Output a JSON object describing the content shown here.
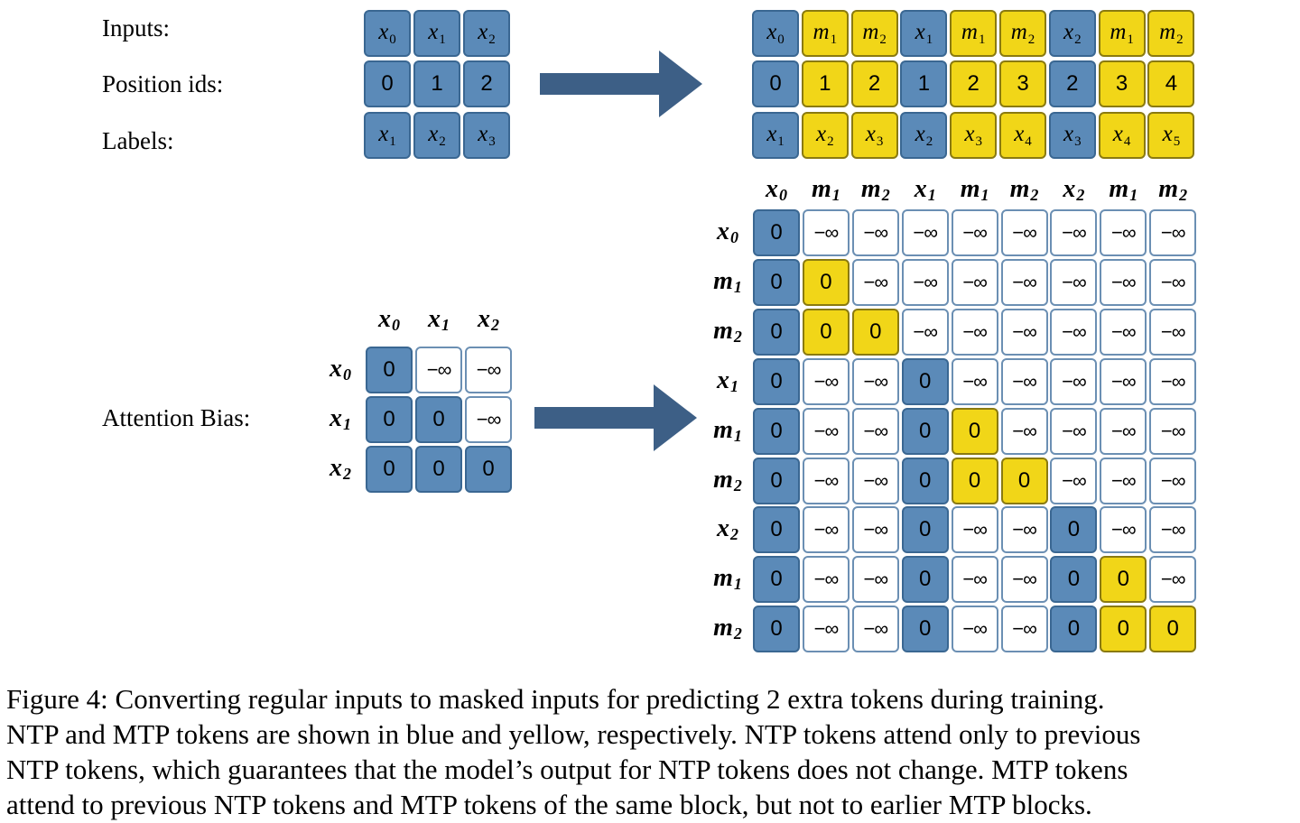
{
  "row_labels": {
    "inputs": "Inputs:",
    "position_ids": "Position ids:",
    "labels": "Labels:",
    "attention_bias": "Attention Bias:"
  },
  "regular": {
    "inputs": [
      {
        "t": "x",
        "s": "0"
      },
      {
        "t": "x",
        "s": "1"
      },
      {
        "t": "x",
        "s": "2"
      }
    ],
    "position_ids": [
      "0",
      "1",
      "2"
    ],
    "labels": [
      {
        "t": "x",
        "s": "1"
      },
      {
        "t": "x",
        "s": "2"
      },
      {
        "t": "x",
        "s": "3"
      }
    ],
    "bias_headers": [
      {
        "t": "x",
        "s": "0"
      },
      {
        "t": "x",
        "s": "1"
      },
      {
        "t": "x",
        "s": "2"
      }
    ],
    "bias": [
      [
        "0",
        "−∞",
        "−∞"
      ],
      [
        "0",
        "0",
        "−∞"
      ],
      [
        "0",
        "0",
        "0"
      ]
    ]
  },
  "masked": {
    "kinds": [
      "ntp",
      "mtp",
      "mtp",
      "ntp",
      "mtp",
      "mtp",
      "ntp",
      "mtp",
      "mtp"
    ],
    "inputs": [
      {
        "t": "x",
        "s": "0"
      },
      {
        "t": "m",
        "s": "1"
      },
      {
        "t": "m",
        "s": "2"
      },
      {
        "t": "x",
        "s": "1"
      },
      {
        "t": "m",
        "s": "1"
      },
      {
        "t": "m",
        "s": "2"
      },
      {
        "t": "x",
        "s": "2"
      },
      {
        "t": "m",
        "s": "1"
      },
      {
        "t": "m",
        "s": "2"
      }
    ],
    "position_ids": [
      "0",
      "1",
      "2",
      "1",
      "2",
      "3",
      "2",
      "3",
      "4"
    ],
    "labels": [
      {
        "t": "x",
        "s": "1"
      },
      {
        "t": "x",
        "s": "2"
      },
      {
        "t": "x",
        "s": "3"
      },
      {
        "t": "x",
        "s": "2"
      },
      {
        "t": "x",
        "s": "3"
      },
      {
        "t": "x",
        "s": "4"
      },
      {
        "t": "x",
        "s": "3"
      },
      {
        "t": "x",
        "s": "4"
      },
      {
        "t": "x",
        "s": "5"
      }
    ],
    "bias_headers": [
      {
        "t": "x",
        "s": "0"
      },
      {
        "t": "m",
        "s": "1"
      },
      {
        "t": "m",
        "s": "2"
      },
      {
        "t": "x",
        "s": "1"
      },
      {
        "t": "m",
        "s": "1"
      },
      {
        "t": "m",
        "s": "2"
      },
      {
        "t": "x",
        "s": "2"
      },
      {
        "t": "m",
        "s": "1"
      },
      {
        "t": "m",
        "s": "2"
      }
    ],
    "bias": [
      [
        "0",
        "−∞",
        "−∞",
        "−∞",
        "−∞",
        "−∞",
        "−∞",
        "−∞",
        "−∞"
      ],
      [
        "0",
        "0",
        "−∞",
        "−∞",
        "−∞",
        "−∞",
        "−∞",
        "−∞",
        "−∞"
      ],
      [
        "0",
        "0",
        "0",
        "−∞",
        "−∞",
        "−∞",
        "−∞",
        "−∞",
        "−∞"
      ],
      [
        "0",
        "−∞",
        "−∞",
        "0",
        "−∞",
        "−∞",
        "−∞",
        "−∞",
        "−∞"
      ],
      [
        "0",
        "−∞",
        "−∞",
        "0",
        "0",
        "−∞",
        "−∞",
        "−∞",
        "−∞"
      ],
      [
        "0",
        "−∞",
        "−∞",
        "0",
        "0",
        "0",
        "−∞",
        "−∞",
        "−∞"
      ],
      [
        "0",
        "−∞",
        "−∞",
        "0",
        "−∞",
        "−∞",
        "0",
        "−∞",
        "−∞"
      ],
      [
        "0",
        "−∞",
        "−∞",
        "0",
        "−∞",
        "−∞",
        "0",
        "0",
        "−∞"
      ],
      [
        "0",
        "−∞",
        "−∞",
        "0",
        "−∞",
        "−∞",
        "0",
        "0",
        "0"
      ]
    ]
  },
  "colors": {
    "ntp": "#5b8ab8",
    "mtp": "#f1d618",
    "arrow": "#3d5f86"
  },
  "caption": [
    "Figure 4: Converting regular inputs to masked inputs for predicting 2 extra tokens during training.",
    "NTP and MTP tokens are shown in blue and yellow, respectively. NTP tokens attend only to previous",
    "NTP tokens, which guarantees that the model’s output for NTP tokens does not change. MTP tokens",
    "attend to previous NTP tokens and MTP tokens of the same block, but not to earlier MTP blocks."
  ]
}
